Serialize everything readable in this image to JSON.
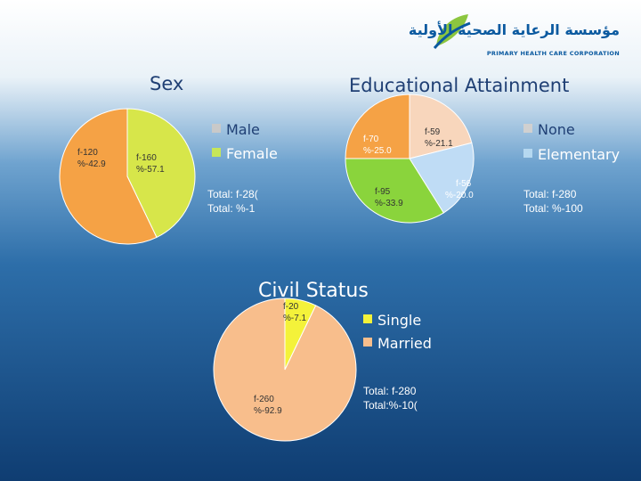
{
  "logo": {
    "arabic": "مؤسسة الرعاية الصحية الأولية",
    "english": "PRIMARY HEALTH CARE CORPORATION"
  },
  "chart_data": [
    {
      "type": "pie",
      "title": "Sex",
      "categories": [
        "Male",
        "Female"
      ],
      "values": [
        120,
        160
      ],
      "labels": [
        {
          "count": "f-120",
          "percent": "%-42.9"
        },
        {
          "count": "f-160",
          "percent": "%-57.1"
        }
      ],
      "colors": [
        "#d7e64a",
        "#f5a245"
      ],
      "legend": [
        "Male",
        "Female"
      ],
      "legend_colors": [
        "#c9c9c9",
        "#c6e65a"
      ],
      "total_count": "Total: f-28(",
      "total_percent": "Total: %-1"
    },
    {
      "type": "pie",
      "title": "Educational Attainment",
      "categories": [
        "f-59",
        "f-56",
        "f-95",
        "f-70"
      ],
      "values": [
        59,
        56,
        95,
        70
      ],
      "labels": [
        {
          "count": "f-59",
          "percent": "%-21.1"
        },
        {
          "count": "f-56",
          "percent": "%-20.0"
        },
        {
          "count": "f-95",
          "percent": "%-33.9"
        },
        {
          "count": "f-70",
          "percent": "%-25.0"
        }
      ],
      "colors": [
        "#f8d6bc",
        "#bfdcf5",
        "#8ad43c",
        "#f5a245"
      ],
      "legend": [
        "None",
        "Elementary"
      ],
      "legend_colors": [
        "#d0d0d0",
        "#b5d8f0"
      ],
      "total_count": "Total: f-280",
      "total_percent": "Total: %-100"
    },
    {
      "type": "pie",
      "title": "Civil Status",
      "categories": [
        "Single",
        "Married"
      ],
      "values": [
        20,
        260
      ],
      "labels": [
        {
          "count": "f-20",
          "percent": "%-7.1"
        },
        {
          "count": "f-260",
          "percent": "%-92.9"
        }
      ],
      "colors": [
        "#f4f23a",
        "#f8be8c"
      ],
      "legend": [
        "Single",
        "Married"
      ],
      "legend_colors": [
        "#f4f23a",
        "#f8be8c"
      ],
      "total_count": "Total: f-280",
      "total_percent": "Total:%-10("
    }
  ]
}
